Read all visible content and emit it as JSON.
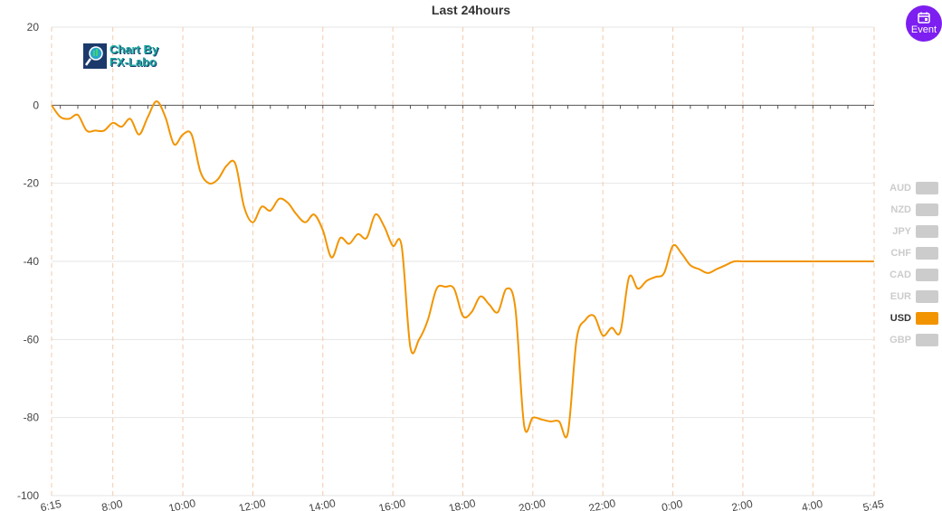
{
  "title": "Last 24hours",
  "event_button": {
    "label": "Event",
    "icon": "calendar-icon",
    "color": "#7c1ff0"
  },
  "logo": {
    "line1": "Chart By",
    "line2": "FX-Labo"
  },
  "legend": {
    "items": [
      {
        "label": "AUD",
        "active": false
      },
      {
        "label": "NZD",
        "active": false
      },
      {
        "label": "JPY",
        "active": false
      },
      {
        "label": "CHF",
        "active": false
      },
      {
        "label": "CAD",
        "active": false
      },
      {
        "label": "EUR",
        "active": false
      },
      {
        "label": "USD",
        "active": true
      },
      {
        "label": "GBP",
        "active": false
      }
    ],
    "active_color": "#f29400",
    "inactive_color": "#cccccc"
  },
  "chart_data": {
    "type": "line",
    "title": "Last 24hours",
    "ylim": [
      -100,
      20
    ],
    "yticks": [
      20,
      0,
      -20,
      -40,
      -60,
      -80,
      -100
    ],
    "xlim": [
      "6:15",
      "5:45"
    ],
    "xtick_labels": [
      "6:15",
      "8:00",
      "10:00",
      "12:00",
      "14:00",
      "16:00",
      "18:00",
      "20:00",
      "22:00",
      "0:00",
      "2:00",
      "4:00",
      "5:45"
    ],
    "grid": true,
    "legend_position": "right",
    "series": [
      {
        "name": "USD",
        "color": "#f29400",
        "x": [
          "6:15",
          "6:30",
          "6:45",
          "7:00",
          "7:15",
          "7:30",
          "7:45",
          "8:00",
          "8:15",
          "8:30",
          "8:45",
          "9:00",
          "9:15",
          "9:30",
          "9:45",
          "10:00",
          "10:15",
          "10:30",
          "10:45",
          "11:00",
          "11:15",
          "11:30",
          "11:45",
          "12:00",
          "12:15",
          "12:30",
          "12:45",
          "13:00",
          "13:15",
          "13:30",
          "13:45",
          "14:00",
          "14:15",
          "14:30",
          "14:45",
          "15:00",
          "15:15",
          "15:30",
          "15:45",
          "16:00",
          "16:15",
          "16:30",
          "16:45",
          "17:00",
          "17:15",
          "17:30",
          "17:45",
          "18:00",
          "18:15",
          "18:30",
          "18:45",
          "19:00",
          "19:15",
          "19:30",
          "19:45",
          "20:00",
          "20:15",
          "20:30",
          "20:45",
          "21:00",
          "21:15",
          "21:30",
          "21:45",
          "22:00",
          "22:15",
          "22:30",
          "22:45",
          "23:00",
          "23:15",
          "23:30",
          "23:45",
          "0:00",
          "0:15",
          "0:30",
          "0:45",
          "1:00",
          "1:15",
          "1:30",
          "1:45",
          "2:00",
          "2:15",
          "2:30",
          "2:45",
          "3:00",
          "3:15",
          "3:30",
          "3:45",
          "4:00",
          "4:15",
          "4:30",
          "4:45",
          "5:00",
          "5:15",
          "5:30",
          "5:45"
        ],
        "values": [
          0,
          -3,
          -3.5,
          -2.5,
          -6.5,
          -6.5,
          -6.5,
          -4.5,
          -5.5,
          -3.5,
          -7.5,
          -3,
          1,
          -3,
          -10,
          -7.5,
          -7.5,
          -17,
          -20,
          -19,
          -15.5,
          -15,
          -26,
          -30,
          -26,
          -27,
          -24,
          -25,
          -28,
          -30,
          -28,
          -32,
          -39,
          -34,
          -35.5,
          -33,
          -34,
          -28,
          -31,
          -36,
          -36,
          -62,
          -60,
          -55,
          -47,
          -46.5,
          -47,
          -54,
          -53,
          -49,
          -51,
          -53,
          -47,
          -52,
          -82,
          -80,
          -80.5,
          -81,
          -81,
          -84,
          -60,
          -55,
          -54,
          -59,
          -57,
          -58,
          -44,
          -47,
          -45,
          -44,
          -43,
          -36,
          -38,
          -41,
          -42,
          -43,
          -42,
          -41,
          -40,
          -40,
          -40,
          -40,
          -40,
          -40,
          -40,
          -40,
          -40,
          -40,
          -40,
          -40,
          -40,
          -40,
          -40,
          -40,
          -40
        ]
      }
    ]
  }
}
